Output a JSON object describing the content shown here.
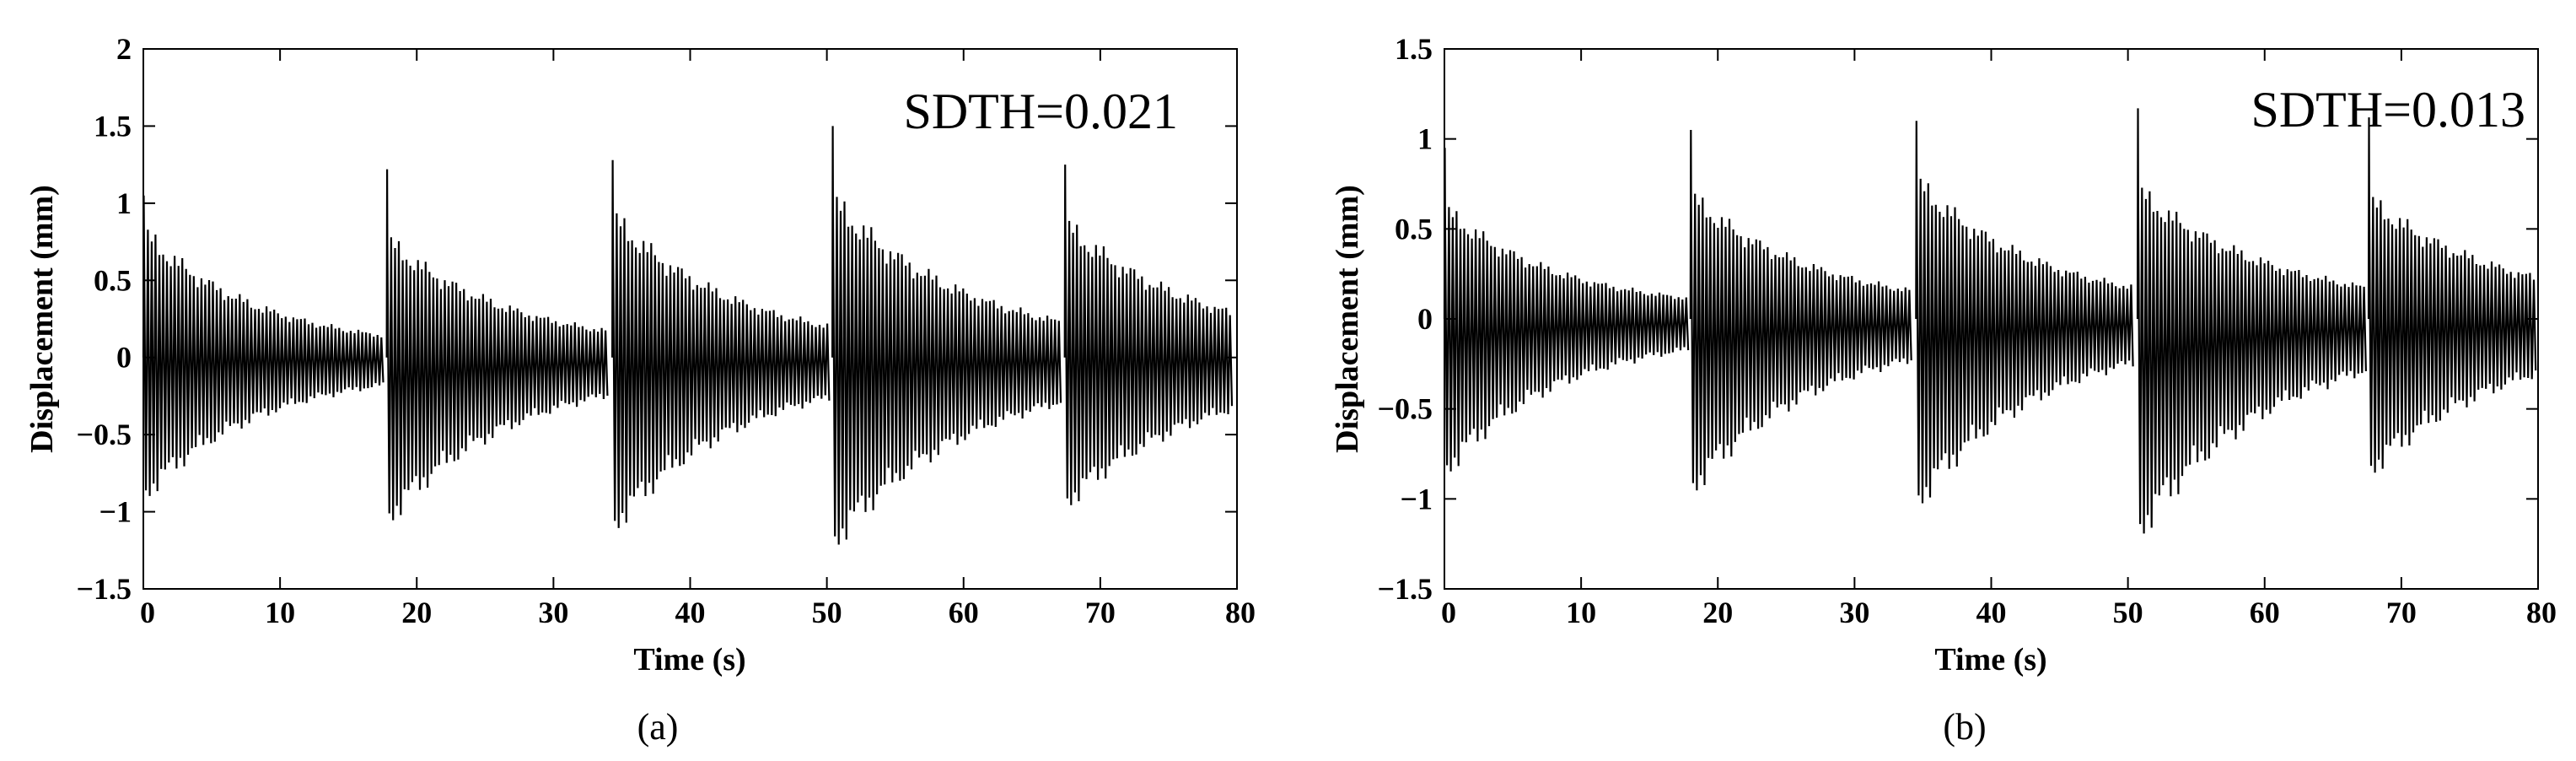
{
  "chart_data": [
    {
      "type": "line",
      "xlabel": "Time (s)",
      "ylabel": "Displacement (mm)",
      "xlim": [
        0,
        80
      ],
      "ylim": [
        -1.5,
        2
      ],
      "xticks": [
        "0",
        "10",
        "20",
        "30",
        "40",
        "50",
        "60",
        "70",
        "80"
      ],
      "yticks": [
        "−1.5",
        "−1",
        "−0.5",
        "0",
        "0.5",
        "1",
        "1.5",
        "2"
      ],
      "annotation": "SDTH=0.021",
      "caption": "(a)",
      "grid": false,
      "segments": [
        {
          "start": 0.0,
          "end": 17.8,
          "peak": 1.05,
          "env_pos": 0.75,
          "env_neg": -0.8,
          "decay": 0.12
        },
        {
          "start": 17.8,
          "end": 34.3,
          "peak": 1.22,
          "env_pos": 0.7,
          "env_neg": -0.95,
          "decay": 0.11
        },
        {
          "start": 34.3,
          "end": 50.4,
          "peak": 1.28,
          "env_pos": 0.85,
          "env_neg": -1.0,
          "decay": 0.11
        },
        {
          "start": 50.4,
          "end": 67.4,
          "peak": 1.5,
          "env_pos": 0.95,
          "env_neg": -1.1,
          "decay": 0.1
        },
        {
          "start": 67.4,
          "end": 80.0,
          "peak": 1.25,
          "env_pos": 0.8,
          "env_neg": -0.85,
          "decay": 0.1
        }
      ]
    },
    {
      "type": "line",
      "xlabel": "Time (s)",
      "ylabel": "Displacement (mm)",
      "xlim": [
        0,
        80
      ],
      "ylim": [
        -1.5,
        1.5
      ],
      "xticks": [
        "0",
        "10",
        "20",
        "30",
        "40",
        "50",
        "60",
        "70",
        "80"
      ],
      "yticks": [
        "−1.5",
        "−1",
        "−0.5",
        "0",
        "0.5",
        "1",
        "1.5"
      ],
      "annotation": "SDTH=0.013",
      "caption": "(b)",
      "grid": false,
      "segments": [
        {
          "start": 0.0,
          "end": 18.0,
          "peak": 0.95,
          "env_pos": 0.55,
          "env_neg": -0.75,
          "decay": 0.12
        },
        {
          "start": 18.0,
          "end": 34.5,
          "peak": 1.05,
          "env_pos": 0.62,
          "env_neg": -0.85,
          "decay": 0.11
        },
        {
          "start": 34.5,
          "end": 50.7,
          "peak": 1.1,
          "env_pos": 0.7,
          "env_neg": -0.92,
          "decay": 0.11
        },
        {
          "start": 50.7,
          "end": 67.6,
          "peak": 1.17,
          "env_pos": 0.65,
          "env_neg": -1.08,
          "decay": 0.1
        },
        {
          "start": 67.6,
          "end": 80.0,
          "peak": 1.12,
          "env_pos": 0.6,
          "env_neg": -0.75,
          "decay": 0.1
        }
      ]
    }
  ]
}
